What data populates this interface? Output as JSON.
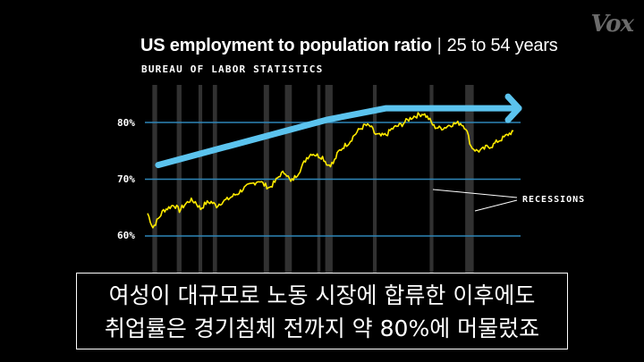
{
  "header": {
    "title_main": "US employment to population ratio",
    "title_sep": "|",
    "title_sub": "25 to 54 years",
    "source": "BUREAU OF LABOR STATISTICS",
    "logo": "Vox"
  },
  "caption": {
    "line1": "여성이 대규모로 노동 시장에 합류한 이후에도",
    "line2": "취업률은 경기침체 전까지 약 80%에 머물렀죠"
  },
  "colors": {
    "background": "#000000",
    "series": "#ffea00",
    "arrow": "#5bc3ee",
    "gridline": "#2e86b8",
    "recession": "#5a5a5a",
    "text": "#ffffff"
  },
  "chart_data": {
    "type": "line",
    "title": "US employment to population ratio | 25 to 54 years",
    "source": "BUREAU OF LABOR STATISTICS",
    "y_ticks": [
      "60%",
      "70%",
      "80%"
    ],
    "ylim": [
      54,
      83
    ],
    "xlim": [
      1948,
      2018
    ],
    "grid": true,
    "annotation": "RECESSIONS",
    "recessions": [
      [
        1948.9,
        1949.8
      ],
      [
        1953.5,
        1954.4
      ],
      [
        1957.6,
        1958.3
      ],
      [
        1960.3,
        1961.1
      ],
      [
        1969.9,
        1970.9
      ],
      [
        1973.9,
        1975.2
      ],
      [
        1980.0,
        1980.6
      ],
      [
        1981.5,
        1982.9
      ],
      [
        1990.5,
        1991.2
      ],
      [
        2001.2,
        2001.9
      ],
      [
        2007.9,
        2009.5
      ]
    ],
    "series": [
      {
        "x": [
          1948,
          1949,
          1950,
          1951,
          1952,
          1953,
          1954,
          1955,
          1956,
          1957,
          1958,
          1959,
          1960,
          1961,
          1962,
          1963,
          1964,
          1965,
          1966,
          1967,
          1968,
          1969,
          1970,
          1971,
          1972,
          1973,
          1974,
          1975,
          1976,
          1977,
          1978,
          1979,
          1980,
          1981,
          1982,
          1983,
          1984,
          1985,
          1986,
          1987,
          1988,
          1989,
          1990,
          1991,
          1992,
          1993,
          1994,
          1995,
          1996,
          1997,
          1998,
          1999,
          2000,
          2001,
          2002,
          2003,
          2004,
          2005,
          2006,
          2007,
          2008,
          2009,
          2010,
          2011,
          2012,
          2013,
          2014,
          2015,
          2016,
          2017
        ],
        "values": [
          64.0,
          61.5,
          63.0,
          64.5,
          65.0,
          65.5,
          64.5,
          65.5,
          66.3,
          66.0,
          64.8,
          65.8,
          66.0,
          65.3,
          66.0,
          66.4,
          67.0,
          67.5,
          68.3,
          68.8,
          69.3,
          69.8,
          69.0,
          68.5,
          69.5,
          70.8,
          71.3,
          69.5,
          70.6,
          72.0,
          73.8,
          74.6,
          74.2,
          73.9,
          72.5,
          72.8,
          74.8,
          75.8,
          76.5,
          77.8,
          78.8,
          79.5,
          79.3,
          77.9,
          77.6,
          77.8,
          78.8,
          79.3,
          79.7,
          80.4,
          81.0,
          81.3,
          81.6,
          80.7,
          79.3,
          79.0,
          79.1,
          79.6,
          79.8,
          79.9,
          79.1,
          75.8,
          75.0,
          75.1,
          75.7,
          75.9,
          76.7,
          77.2,
          77.9,
          78.5
        ]
      }
    ],
    "trend_arrow": {
      "x": [
        1950,
        1982,
        1993,
        2018
      ],
      "values": [
        72.5,
        80.5,
        82.5,
        82.5
      ]
    }
  }
}
